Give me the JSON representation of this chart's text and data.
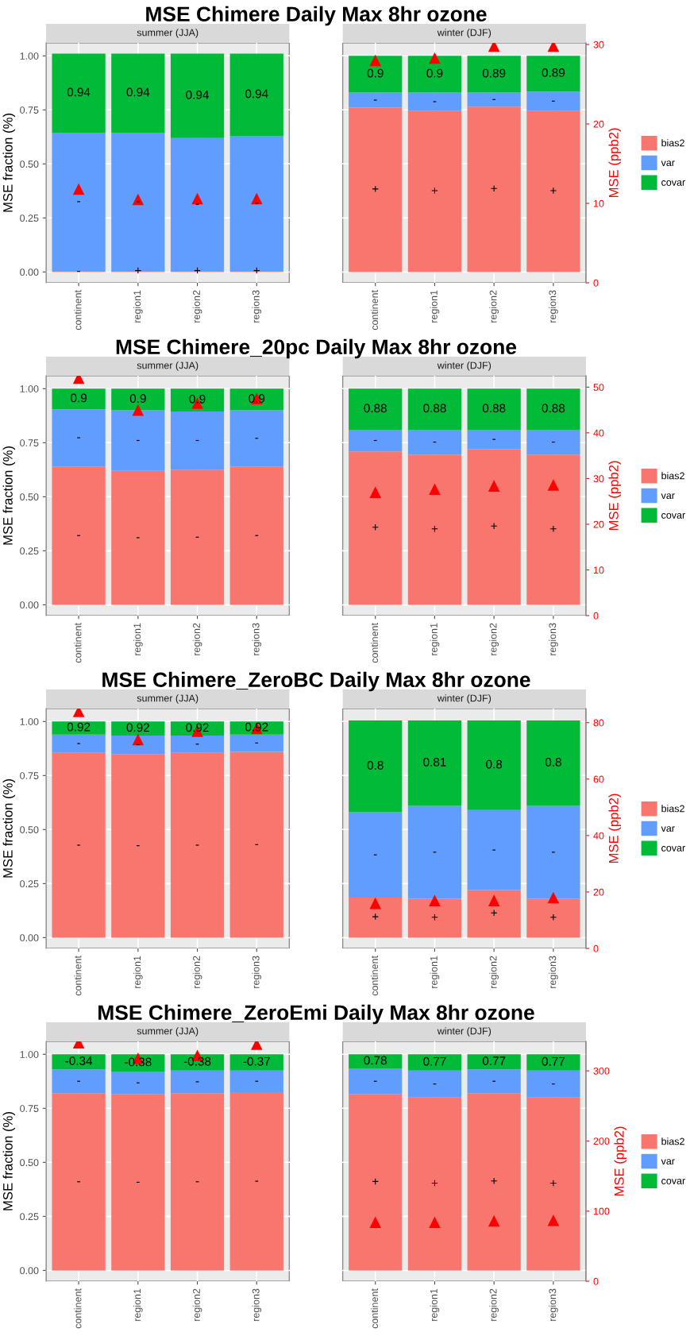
{
  "chart_data": [
    {
      "type": "bar",
      "stacked": true,
      "title": "MSE Chimere Daily Max 8hr ozone",
      "ylabel": "MSE fraction (%)",
      "y2label": "MSE (ppb2)",
      "categories": [
        "continent",
        "region1",
        "region2",
        "region3",
        null,
        "continent",
        "region1",
        "region2",
        "region3"
      ],
      "series": [
        {
          "name": "bias2",
          "color": "#f8766d",
          "values": [
            0.005,
            0.005,
            0.005,
            0.005,
            null,
            0.76,
            0.745,
            0.765,
            0.745
          ]
        },
        {
          "name": "var",
          "color": "#619cff",
          "values": [
            0.64,
            0.64,
            0.615,
            0.625,
            null,
            0.07,
            0.085,
            0.065,
            0.09
          ]
        },
        {
          "name": "covar",
          "color": "#00ba38",
          "values": [
            0.365,
            0.365,
            0.39,
            0.38,
            null,
            0.17,
            0.17,
            0.17,
            0.165
          ]
        },
        {
          "type": "scatter",
          "axis": "y2",
          "marker": "triangle",
          "color": "#ff0000",
          "values": [
            11.8,
            10.5,
            10.6,
            10.6,
            null,
            28.0,
            28.3,
            29.8,
            29.8
          ]
        }
      ],
      "annotations": [
        "summer (JJA)",
        "-",
        "+",
        "+",
        "+",
        "-",
        "-",
        "-",
        "-",
        "0.94",
        "0.94",
        "0.94",
        "0.94",
        "winter (DJF)",
        "+",
        "+",
        "+",
        "+",
        "-",
        "-",
        "-",
        "-",
        "0.9",
        "0.9",
        "0.89",
        "0.89"
      ],
      "ylim": [
        -0.05,
        1.06
      ],
      "yticks": [
        {
          "value": 0,
          "label": "0.00"
        },
        {
          "value": 0.25,
          "label": "0.25"
        },
        {
          "value": 0.5,
          "label": "0.50"
        },
        {
          "value": 0.75,
          "label": "0.75"
        },
        {
          "value": 1,
          "label": "1.00"
        }
      ],
      "y2lim": [
        0,
        30.2
      ],
      "y2ticks": [
        0,
        10,
        20,
        30
      ],
      "grid": true,
      "legend": "right"
    },
    {
      "type": "bar",
      "stacked": true,
      "title": "MSE Chimere_20pc Daily Max 8hr ozone",
      "ylabel": "MSE fraction (%)",
      "y2label": "MSE (ppb2)",
      "categories": [
        "continent",
        "region1",
        "region2",
        "region3",
        null,
        "continent",
        "region1",
        "region2",
        "region3"
      ],
      "series": [
        {
          "name": "bias2",
          "color": "#f8766d",
          "values": [
            0.64,
            0.62,
            0.625,
            0.64,
            null,
            0.71,
            0.695,
            0.72,
            0.695
          ]
        },
        {
          "name": "var",
          "color": "#619cff",
          "values": [
            0.265,
            0.28,
            0.27,
            0.26,
            null,
            0.1,
            0.115,
            0.09,
            0.115
          ]
        },
        {
          "name": "covar",
          "color": "#00ba38",
          "values": [
            0.095,
            0.1,
            0.105,
            0.1,
            null,
            0.19,
            0.19,
            0.19,
            0.19
          ]
        },
        {
          "type": "scatter",
          "axis": "y2",
          "marker": "triangle",
          "color": "#ff0000",
          "values": [
            52,
            45,
            46.5,
            47.5,
            null,
            27,
            27.7,
            28.4,
            28.6
          ]
        }
      ],
      "annotations": [
        "summer (JJA)",
        "-",
        "-",
        "-",
        "-",
        "-",
        "-",
        "-",
        "-",
        "0.9",
        "0.9",
        "0.9",
        "0.9",
        "winter (DJF)",
        "+",
        "+",
        "+",
        "+",
        "-",
        "-",
        "-",
        "-",
        "0.88",
        "0.88",
        "0.88",
        "0.88"
      ],
      "ylim": [
        -0.05,
        1.06
      ],
      "yticks": [
        {
          "value": 0,
          "label": "0.00"
        },
        {
          "value": 0.25,
          "label": "0.25"
        },
        {
          "value": 0.5,
          "label": "0.50"
        },
        {
          "value": 0.75,
          "label": "0.75"
        },
        {
          "value": 1,
          "label": "1.00"
        }
      ],
      "y2lim": [
        0,
        52.5
      ],
      "y2ticks": [
        0,
        10,
        20,
        30,
        40,
        50
      ],
      "grid": true,
      "legend": "right"
    },
    {
      "type": "bar",
      "stacked": true,
      "title": "MSE Chimere_ZeroBC Daily Max 8hr ozone",
      "ylabel": "MSE fraction (%)",
      "y2label": "MSE (ppb2)",
      "categories": [
        "continent",
        "region1",
        "region2",
        "region3",
        null,
        "continent",
        "region1",
        "region2",
        "region3"
      ],
      "series": [
        {
          "name": "bias2",
          "color": "#f8766d",
          "values": [
            0.855,
            0.85,
            0.855,
            0.86,
            null,
            0.185,
            0.18,
            0.22,
            0.18
          ]
        },
        {
          "name": "var",
          "color": "#619cff",
          "values": [
            0.085,
            0.085,
            0.08,
            0.08,
            null,
            0.395,
            0.43,
            0.37,
            0.43
          ]
        },
        {
          "name": "covar",
          "color": "#00ba38",
          "values": [
            0.06,
            0.065,
            0.065,
            0.06,
            null,
            0.425,
            0.395,
            0.415,
            0.395
          ]
        },
        {
          "type": "scatter",
          "axis": "y2",
          "marker": "triangle",
          "color": "#ff0000",
          "values": [
            84,
            74,
            77,
            78,
            null,
            16,
            17,
            17,
            18
          ]
        }
      ],
      "annotations": [
        "summer (JJA)",
        "-",
        "-",
        "-",
        "-",
        "-",
        "-",
        "-",
        "-",
        "0.92",
        "0.92",
        "0.92",
        "0.92",
        "winter (DJF)",
        "+",
        "+",
        "+",
        "+",
        "-",
        "-",
        "-",
        "-",
        "0.8",
        "0.81",
        "0.8",
        "0.8"
      ],
      "ylim": [
        -0.05,
        1.06
      ],
      "yticks": [
        {
          "value": 0,
          "label": "0.00"
        },
        {
          "value": 0.25,
          "label": "0.25"
        },
        {
          "value": 0.5,
          "label": "0.50"
        },
        {
          "value": 0.75,
          "label": "0.75"
        },
        {
          "value": 1,
          "label": "1.00"
        }
      ],
      "y2lim": [
        0,
        85
      ],
      "y2ticks": [
        0,
        20,
        40,
        60,
        80
      ],
      "grid": true,
      "legend": "right"
    },
    {
      "type": "bar",
      "stacked": true,
      "title": "MSE Chimere_ZeroEmi Daily Max 8hr ozone",
      "ylabel": "MSE fraction (%)",
      "y2label": "MSE (ppb2)",
      "categories": [
        "continent",
        "region1",
        "region2",
        "region3",
        null,
        "continent",
        "region1",
        "region2",
        "region3"
      ],
      "series": [
        {
          "name": "bias2",
          "color": "#f8766d",
          "values": [
            0.82,
            0.815,
            0.82,
            0.825,
            null,
            0.815,
            0.8,
            0.82,
            0.8
          ]
        },
        {
          "name": "var",
          "color": "#619cff",
          "values": [
            0.11,
            0.105,
            0.105,
            0.1,
            null,
            0.12,
            0.125,
            0.11,
            0.125
          ]
        },
        {
          "name": "covar",
          "color": "#00ba38",
          "values": [
            0.07,
            0.08,
            0.075,
            0.075,
            null,
            0.065,
            0.075,
            0.07,
            0.075
          ]
        },
        {
          "type": "scatter",
          "axis": "y2",
          "marker": "triangle",
          "color": "#ff0000",
          "values": [
            340,
            318,
            322,
            338,
            null,
            84,
            84,
            86,
            87
          ]
        }
      ],
      "annotations": [
        "summer (JJA)",
        "-",
        "-",
        "-",
        "-",
        "-",
        "-",
        "-",
        "-",
        "-0.34",
        "-0.38",
        "-0.38",
        "-0.37",
        "winter (DJF)",
        "+",
        "+",
        "+",
        "+",
        "-",
        "-",
        "-",
        "-",
        "0.78",
        "0.77",
        "0.77",
        "0.77"
      ],
      "ylim": [
        -0.05,
        1.06
      ],
      "yticks": [
        {
          "value": 0,
          "label": "0.00"
        },
        {
          "value": 0.25,
          "label": "0.25"
        },
        {
          "value": 0.5,
          "label": "0.50"
        },
        {
          "value": 0.75,
          "label": "0.75"
        },
        {
          "value": 1,
          "label": "1.00"
        }
      ],
      "y2lim": [
        0,
        342
      ],
      "y2ticks": [
        0,
        100,
        200,
        300
      ],
      "grid": true,
      "legend": "right"
    }
  ]
}
